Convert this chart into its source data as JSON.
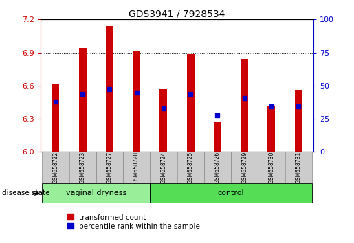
{
  "title": "GDS3941 / 7928534",
  "samples": [
    "GSM658722",
    "GSM658723",
    "GSM658727",
    "GSM658728",
    "GSM658724",
    "GSM658725",
    "GSM658726",
    "GSM658729",
    "GSM658730",
    "GSM658731"
  ],
  "red_values": [
    6.62,
    6.94,
    7.14,
    6.91,
    6.57,
    6.89,
    6.27,
    6.84,
    6.42,
    6.56
  ],
  "blue_values_scaled": [
    6.455,
    6.525,
    6.565,
    6.535,
    6.395,
    6.525,
    6.33,
    6.485,
    6.415,
    6.415
  ],
  "ylim_left": [
    6.0,
    7.2
  ],
  "ylim_right": [
    0,
    100
  ],
  "yticks_left": [
    6.0,
    6.3,
    6.6,
    6.9,
    7.2
  ],
  "yticks_right": [
    0,
    25,
    50,
    75,
    100
  ],
  "bar_color": "#cc0000",
  "dot_color": "#0000cc",
  "bar_base": 6.0,
  "vd_color": "#99ee99",
  "ctrl_color": "#55dd55",
  "group_label": "disease state",
  "legend_red": "transformed count",
  "legend_blue": "percentile rank within the sample",
  "axis_color_left": "#cc0000",
  "axis_color_right": "#0000cc",
  "tick_label_bg": "#cccccc",
  "n_vaginal": 4,
  "n_control": 6
}
